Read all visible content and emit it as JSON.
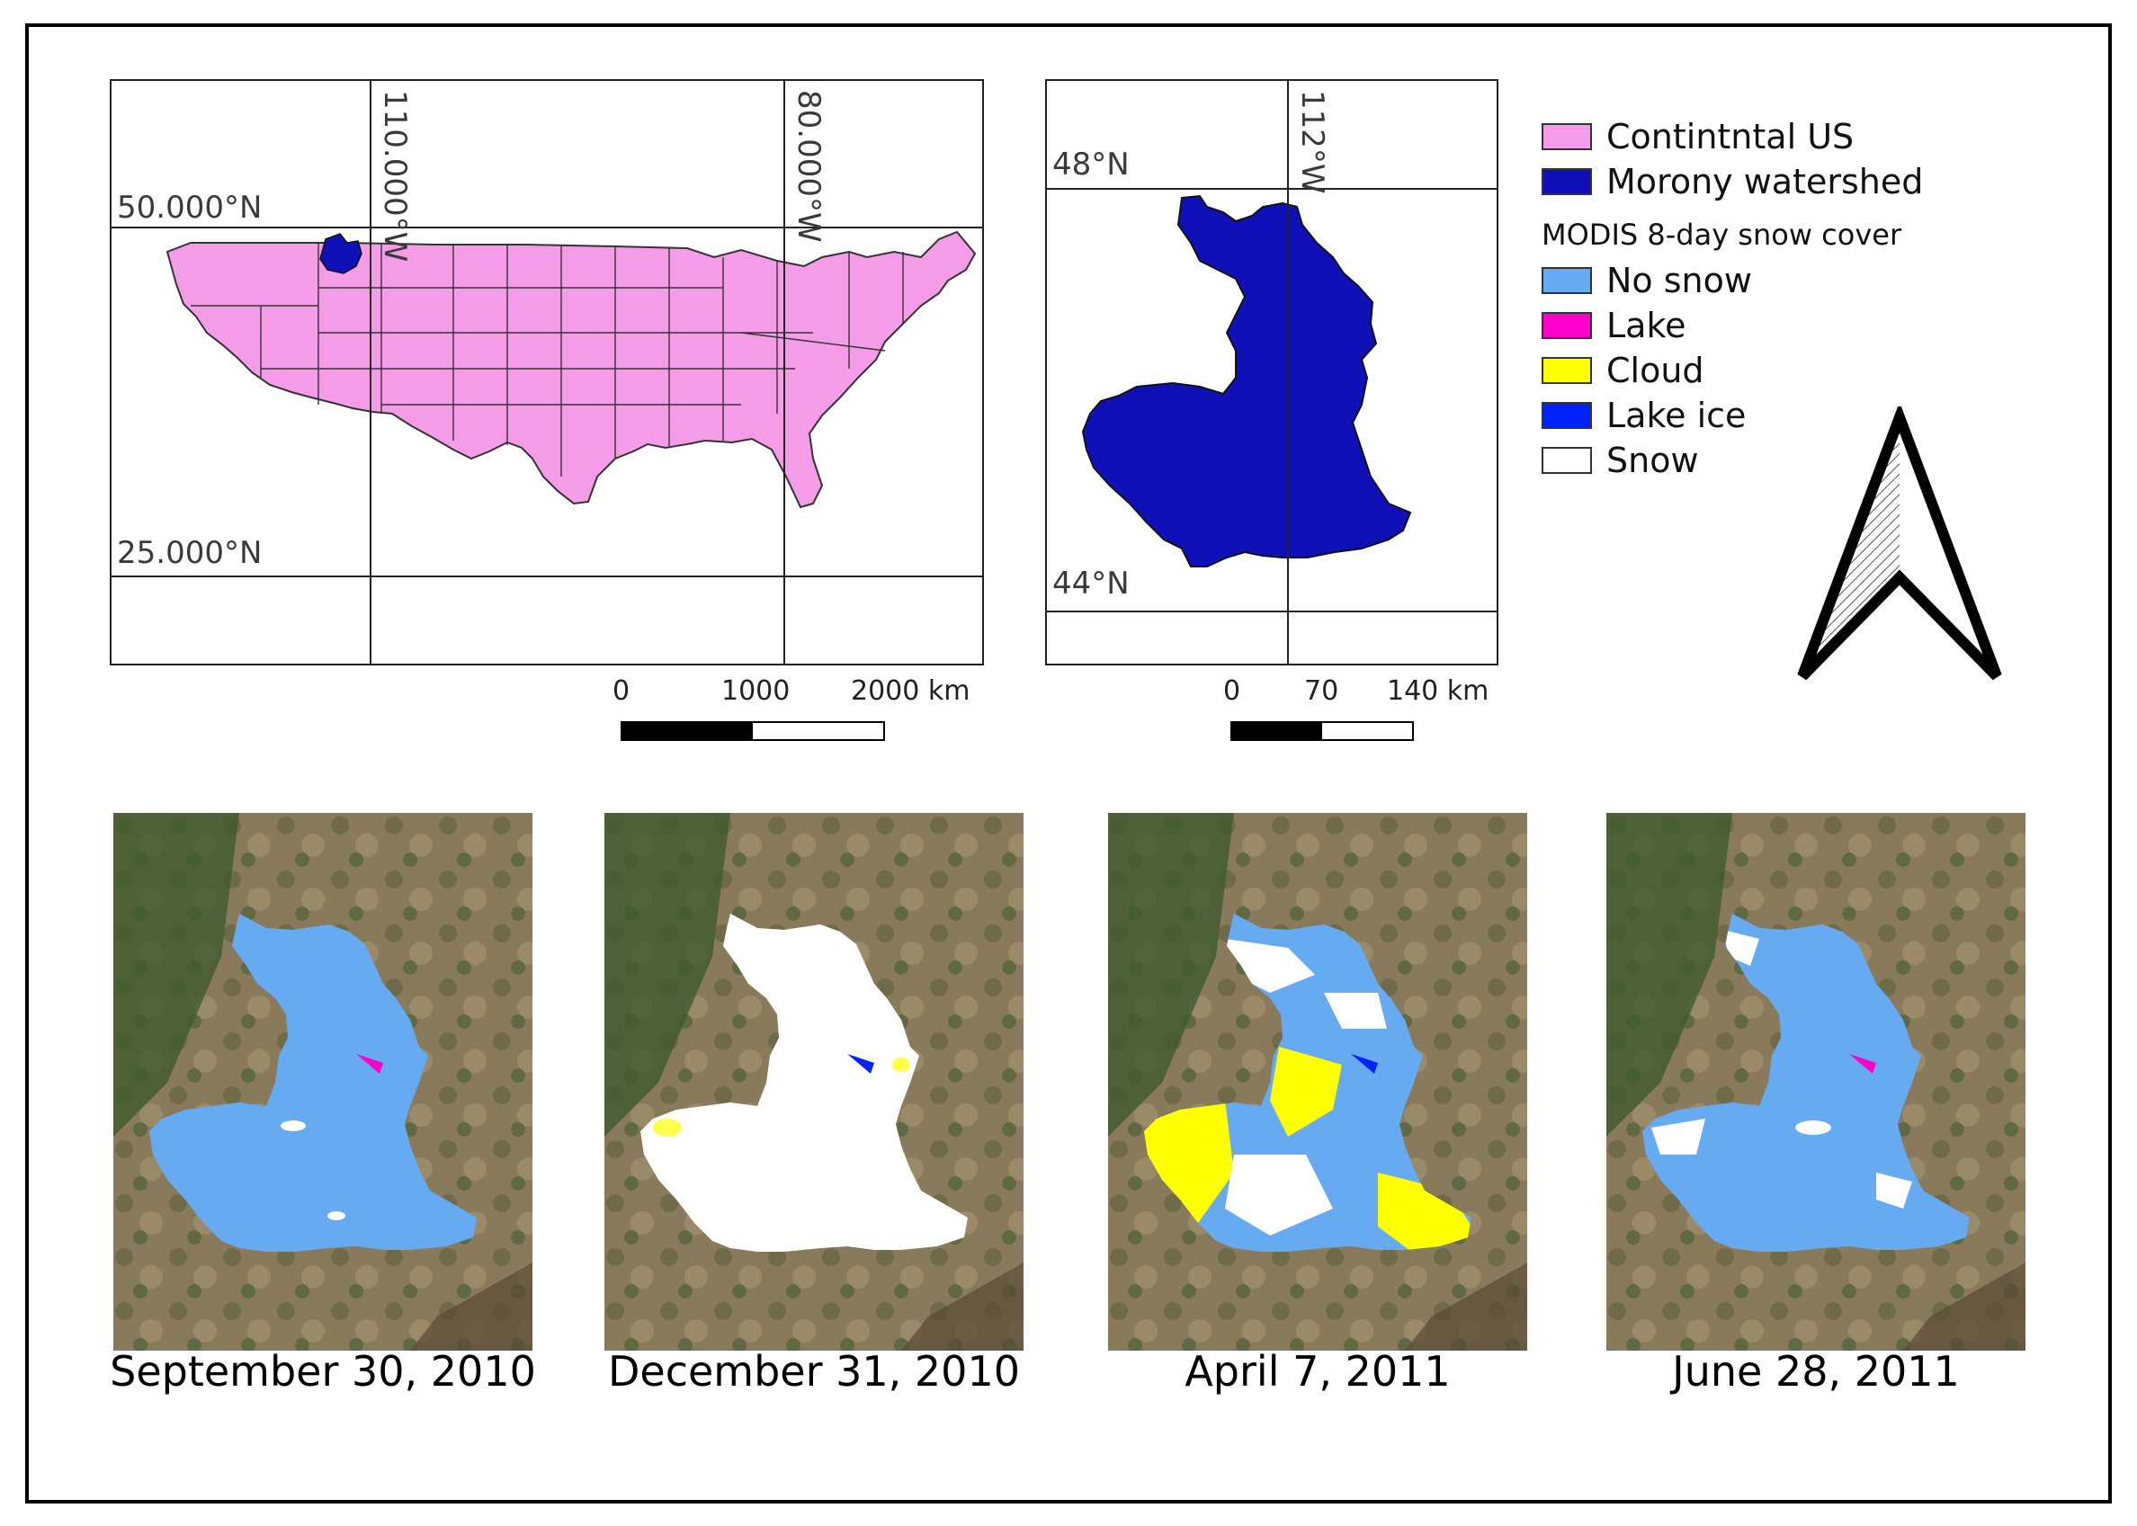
{
  "us_map": {
    "lat_labels": [
      "50.000°N",
      "25.000°N"
    ],
    "lon_labels": [
      "110.000°W",
      "80.000°W"
    ],
    "scale_labels": [
      "0",
      "1000",
      "2000 km"
    ]
  },
  "watershed_map": {
    "lat_labels": [
      "48°N",
      "44°N"
    ],
    "lon_labels": [
      "112°W"
    ],
    "scale_labels": [
      "0",
      "70",
      "140 km"
    ]
  },
  "legend": {
    "continental_us": "Contintntal US",
    "watershed": "Morony watershed",
    "snow_cover_title": "MODIS 8-day snow cover",
    "no_snow": "No snow",
    "lake": "Lake",
    "cloud": "Cloud",
    "lake_ice": "Lake ice",
    "snow": "Snow"
  },
  "colors": {
    "continental_us": "#f59ce8",
    "watershed": "#1010b8",
    "no_snow": "#66aaf2",
    "lake": "#ff00cc",
    "cloud": "#ffff00",
    "lake_ice": "#0022ff",
    "snow": "#ffffff"
  },
  "icons": {
    "north_arrow": "north-arrow-icon"
  },
  "snapshots": [
    {
      "date": "September 30, 2010"
    },
    {
      "date": "December 31, 2010"
    },
    {
      "date": "April 7, 2011"
    },
    {
      "date": "June 28, 2011"
    }
  ]
}
